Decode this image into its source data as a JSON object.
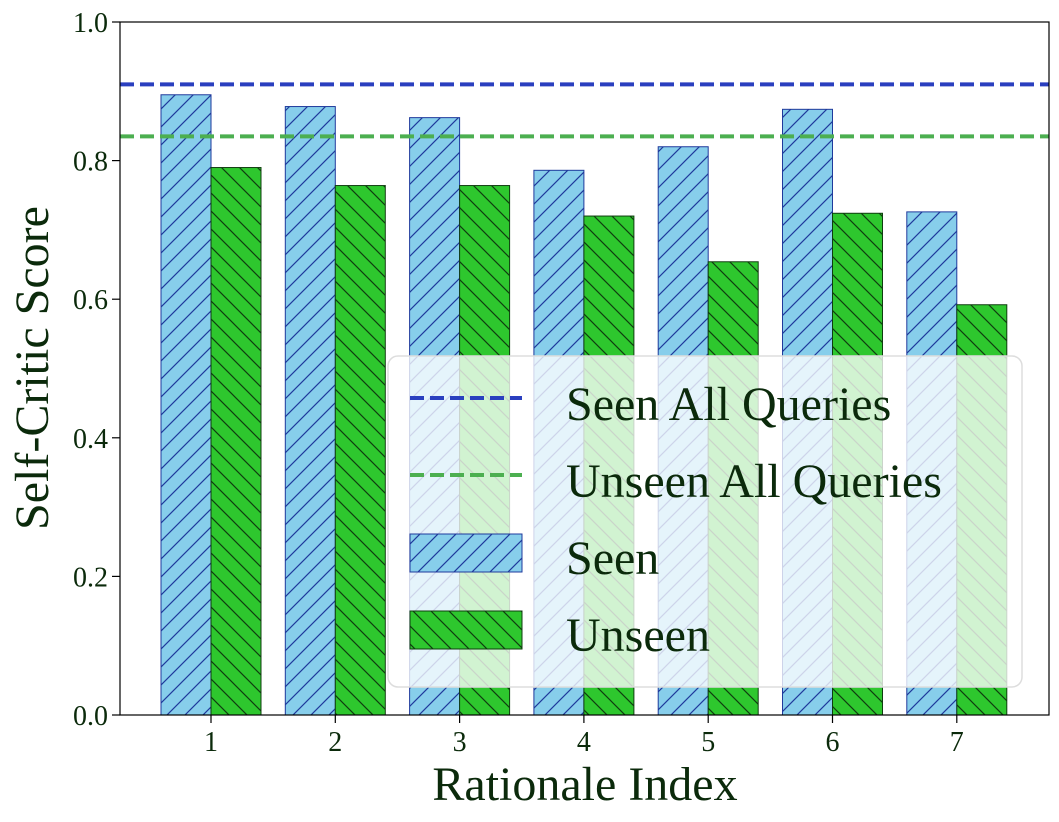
{
  "chart_data": {
    "type": "bar",
    "xlabel": "Rationale Index",
    "ylabel": "Self-Critic Score",
    "categories": [
      "1",
      "2",
      "3",
      "4",
      "5",
      "6",
      "7"
    ],
    "ylim": [
      0.0,
      1.0
    ],
    "yticks": [
      "0.0",
      "0.2",
      "0.4",
      "0.6",
      "0.8",
      "1.0"
    ],
    "series": [
      {
        "name": "Seen",
        "values": [
          0.895,
          0.878,
          0.862,
          0.786,
          0.82,
          0.874,
          0.726
        ],
        "color": "#87ceeb",
        "edge_color": "#1f3a9c",
        "hatch": "/"
      },
      {
        "name": "Unseen",
        "values": [
          0.79,
          0.764,
          0.764,
          0.72,
          0.654,
          0.724,
          0.592
        ],
        "color": "#2ec72e",
        "edge_color": "#0f3d0f",
        "hatch": "\\"
      }
    ],
    "reference_lines": [
      {
        "name": "Seen All Queries",
        "value": 0.91,
        "color": "#2a3fbf",
        "style": "dashed"
      },
      {
        "name": "Unseen All Queries",
        "value": 0.835,
        "color": "#4caf50",
        "style": "dashed"
      }
    ],
    "legend": {
      "placement": "lower-right",
      "entries": [
        "Seen All Queries",
        "Unseen All Queries",
        "Seen",
        "Unseen"
      ]
    },
    "grid": false
  }
}
